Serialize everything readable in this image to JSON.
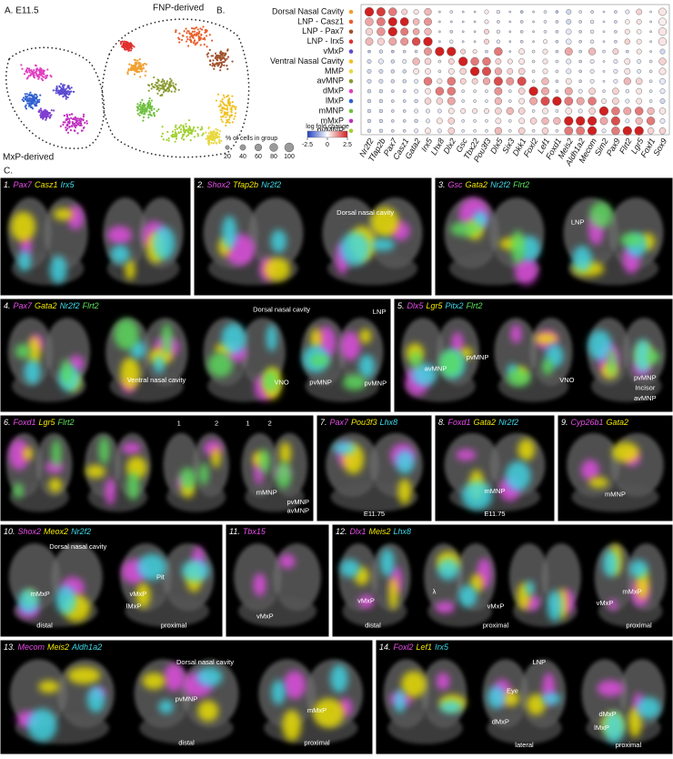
{
  "panel_a": {
    "label": "A. E11.5",
    "annotations": [
      "FNP-derived",
      "MxP-derived"
    ]
  },
  "chart_data": {
    "type": "dotplot",
    "label": "B.",
    "rows": [
      "Dorsal Nasal Cavity",
      "LNP - Casz1",
      "LNP - Pax7",
      "LNP - Irx5",
      "vMxP",
      "Ventral Nasal Cavity",
      "MMP",
      "avMNP",
      "dMxP",
      "lMxP",
      "mMNP",
      "mMxP",
      "pvMNP"
    ],
    "row_colors": [
      "#f0a030",
      "#e8602c",
      "#a0522d",
      "#e03030",
      "#5a4bd0",
      "#f0c020",
      "#e8d840",
      "#8a9a30",
      "#e040c0",
      "#3060d0",
      "#70c040",
      "#c030c0",
      "#a0d030"
    ],
    "columns": [
      "Nr2f2",
      "Tfap2b",
      "Pax7",
      "Casz1",
      "Gata2",
      "Irx5",
      "Lhx8",
      "Dlx2",
      "Gsc",
      "Tbx22",
      "Pou3f3",
      "Dlx5",
      "Six3",
      "Dkk1",
      "Foxl2",
      "Lef1",
      "Foxd1",
      "Meis2",
      "Aldh1a2",
      "Mecom",
      "Sim2",
      "Pax9",
      "Flrt2",
      "Lgr5",
      "Foxf1",
      "Sox9"
    ],
    "log_fold_change": [
      [
        2.5,
        2.2,
        1.5,
        0.5,
        0.3,
        0.8,
        -0.5,
        -0.3,
        -0.5,
        -0.5,
        0.2,
        -0.3,
        -0.5,
        -0.8,
        -0.5,
        -0.3,
        -0.8,
        -0.5,
        -0.3,
        -0.5,
        -0.3,
        -0.5,
        -0.3,
        0.5,
        -0.3,
        0.3
      ],
      [
        1.0,
        1.5,
        2.5,
        2.5,
        0.8,
        1.2,
        -0.5,
        -0.5,
        -0.5,
        -0.5,
        0.3,
        -0.5,
        -0.5,
        -0.5,
        -0.5,
        -0.3,
        -0.5,
        -0.5,
        -0.5,
        -0.3,
        -0.3,
        -0.5,
        0.2,
        0.3,
        -0.5,
        0.2
      ],
      [
        0.5,
        1.2,
        2.5,
        1.5,
        1.0,
        0.8,
        -0.5,
        -0.5,
        -0.5,
        -0.5,
        0.5,
        -0.3,
        -0.5,
        -0.5,
        -0.5,
        -0.3,
        -0.5,
        -0.3,
        -0.5,
        -0.3,
        -0.3,
        -0.5,
        0.3,
        0.2,
        -0.5,
        0.3
      ],
      [
        0.8,
        0.5,
        1.0,
        1.2,
        2.0,
        2.5,
        -0.5,
        -0.3,
        -0.5,
        -0.5,
        0.5,
        -0.3,
        -0.5,
        -0.5,
        -0.5,
        0.2,
        -0.5,
        -0.3,
        -0.5,
        -0.3,
        -0.3,
        -0.5,
        0.5,
        0.3,
        -0.5,
        0.3
      ],
      [
        -0.8,
        -0.5,
        -0.8,
        -0.5,
        -0.5,
        1.2,
        2.5,
        2.5,
        0.5,
        0.3,
        -0.5,
        1.5,
        -0.5,
        0.3,
        -0.3,
        0.3,
        -0.5,
        1.0,
        -0.5,
        0.8,
        -0.3,
        0.5,
        -0.5,
        0.3,
        -0.5,
        -0.5
      ],
      [
        -0.5,
        -0.3,
        -0.5,
        -0.3,
        0.8,
        0.5,
        -0.3,
        0.5,
        2.5,
        1.5,
        1.5,
        0.5,
        0.3,
        0.3,
        -0.3,
        0.3,
        -0.3,
        -0.3,
        -0.5,
        -0.3,
        -0.3,
        -0.3,
        0.3,
        -0.3,
        -0.3,
        0.5
      ],
      [
        -0.5,
        -0.5,
        -0.5,
        -0.5,
        0.3,
        0.3,
        -0.3,
        0.3,
        0.5,
        2.5,
        2.0,
        1.0,
        0.5,
        0.5,
        -0.3,
        0.3,
        -0.3,
        -0.3,
        -0.5,
        -0.3,
        -0.3,
        -0.3,
        0.3,
        -0.3,
        -0.3,
        0.3
      ],
      [
        -0.5,
        -0.5,
        -0.5,
        -0.5,
        -0.3,
        1.5,
        0.3,
        1.5,
        0.5,
        0.5,
        1.0,
        2.0,
        1.2,
        2.0,
        -0.3,
        0.8,
        -0.5,
        0.3,
        -0.5,
        -0.3,
        -0.3,
        -0.3,
        0.8,
        0.5,
        -0.3,
        -0.3
      ],
      [
        -0.5,
        -0.5,
        -0.5,
        -0.5,
        -0.3,
        0.3,
        1.5,
        1.5,
        -0.3,
        -0.3,
        -0.3,
        1.2,
        -0.3,
        0.5,
        2.5,
        1.0,
        -0.5,
        1.0,
        -0.3,
        0.5,
        -0.3,
        0.5,
        -0.3,
        0.3,
        -0.3,
        -0.3
      ],
      [
        -0.5,
        -0.5,
        -0.5,
        -0.5,
        -0.5,
        0.5,
        0.5,
        1.0,
        -0.3,
        -0.3,
        -0.3,
        0.8,
        -0.3,
        0.3,
        1.0,
        2.0,
        2.5,
        1.5,
        1.0,
        1.5,
        0.3,
        0.5,
        -0.3,
        0.3,
        -0.3,
        -0.5
      ],
      [
        -0.5,
        -0.5,
        -0.5,
        -0.5,
        -0.3,
        -0.3,
        -0.3,
        0.3,
        0.3,
        0.3,
        0.3,
        0.5,
        0.8,
        0.5,
        -0.3,
        0.3,
        -0.3,
        0.3,
        -0.3,
        0.5,
        2.5,
        1.5,
        1.0,
        1.5,
        0.8,
        0.3
      ],
      [
        -0.5,
        -0.5,
        -0.5,
        -0.5,
        -0.5,
        -0.3,
        0.3,
        0.5,
        -0.3,
        -0.3,
        -0.3,
        0.3,
        -0.3,
        0.3,
        0.5,
        0.8,
        0.8,
        2.5,
        2.5,
        2.5,
        1.0,
        2.0,
        -0.3,
        0.8,
        1.5,
        -0.3
      ],
      [
        -0.5,
        -0.5,
        -0.5,
        -0.5,
        -0.3,
        0.3,
        -0.3,
        0.5,
        -0.3,
        -0.3,
        -0.3,
        0.8,
        -0.3,
        0.5,
        -0.3,
        0.5,
        -0.3,
        1.5,
        1.5,
        2.5,
        -0.3,
        1.5,
        2.5,
        2.5,
        0.5,
        0.5
      ]
    ],
    "percent_cells": [
      [
        95,
        90,
        80,
        40,
        30,
        60,
        5,
        10,
        5,
        5,
        20,
        15,
        5,
        10,
        5,
        10,
        10,
        30,
        10,
        10,
        5,
        10,
        20,
        40,
        5,
        70
      ],
      [
        80,
        85,
        90,
        85,
        50,
        70,
        5,
        5,
        5,
        5,
        20,
        10,
        5,
        10,
        5,
        10,
        10,
        30,
        10,
        15,
        5,
        10,
        25,
        30,
        5,
        70
      ],
      [
        60,
        80,
        95,
        70,
        50,
        60,
        5,
        10,
        5,
        5,
        30,
        15,
        5,
        10,
        5,
        10,
        10,
        35,
        10,
        15,
        5,
        10,
        30,
        25,
        5,
        75
      ],
      [
        70,
        60,
        70,
        70,
        80,
        95,
        5,
        15,
        5,
        5,
        30,
        15,
        5,
        10,
        5,
        20,
        10,
        35,
        10,
        15,
        5,
        10,
        35,
        30,
        5,
        75
      ],
      [
        10,
        15,
        10,
        10,
        10,
        70,
        95,
        95,
        30,
        20,
        10,
        80,
        5,
        40,
        10,
        30,
        10,
        70,
        10,
        60,
        10,
        40,
        10,
        30,
        5,
        30
      ],
      [
        20,
        30,
        15,
        20,
        60,
        50,
        10,
        40,
        95,
        80,
        80,
        40,
        30,
        40,
        10,
        30,
        10,
        30,
        10,
        20,
        5,
        20,
        40,
        20,
        10,
        60
      ],
      [
        20,
        20,
        15,
        15,
        40,
        40,
        10,
        40,
        50,
        95,
        90,
        60,
        40,
        50,
        10,
        30,
        10,
        30,
        10,
        20,
        5,
        20,
        40,
        20,
        10,
        55
      ],
      [
        20,
        20,
        15,
        15,
        20,
        80,
        30,
        80,
        40,
        40,
        60,
        90,
        70,
        90,
        10,
        60,
        10,
        40,
        10,
        20,
        5,
        20,
        60,
        50,
        10,
        40
      ],
      [
        15,
        15,
        10,
        10,
        20,
        40,
        80,
        80,
        10,
        10,
        10,
        70,
        10,
        50,
        95,
        70,
        10,
        70,
        20,
        50,
        10,
        50,
        15,
        40,
        10,
        30
      ],
      [
        15,
        15,
        10,
        10,
        15,
        50,
        50,
        70,
        10,
        10,
        10,
        60,
        10,
        40,
        70,
        90,
        95,
        85,
        70,
        80,
        30,
        50,
        20,
        40,
        10,
        30
      ],
      [
        15,
        15,
        10,
        10,
        20,
        20,
        20,
        40,
        30,
        30,
        30,
        50,
        60,
        50,
        10,
        40,
        10,
        50,
        20,
        50,
        95,
        80,
        70,
        80,
        60,
        50
      ],
      [
        15,
        15,
        10,
        10,
        15,
        20,
        40,
        50,
        10,
        10,
        10,
        40,
        10,
        40,
        50,
        60,
        60,
        95,
        95,
        95,
        70,
        90,
        20,
        60,
        80,
        30
      ],
      [
        15,
        15,
        10,
        10,
        20,
        40,
        20,
        50,
        10,
        10,
        10,
        60,
        10,
        50,
        10,
        50,
        10,
        85,
        85,
        95,
        20,
        80,
        95,
        95,
        50,
        50
      ]
    ],
    "percent_legend": {
      "title": "% of cells in group",
      "ticks": [
        20,
        40,
        60,
        80,
        100
      ]
    },
    "color_legend": {
      "title": "log fold change",
      "lim": [
        -2.5,
        2.5
      ],
      "ticks": [
        -2.5,
        0,
        2.5
      ],
      "colors": [
        "#2040c0",
        "#ffffff",
        "#d02020"
      ]
    }
  },
  "panel_c": {
    "label": "C.",
    "panels": [
      {
        "number": "1.",
        "genes": [
          {
            "name": "Pax7",
            "color": "#e84de8"
          },
          {
            "name": "Casz1",
            "color": "#f2e600"
          },
          {
            "name": "Irx5",
            "color": "#3fd9e8"
          }
        ],
        "annotations": []
      },
      {
        "number": "2.",
        "genes": [
          {
            "name": "Shox2",
            "color": "#e84de8"
          },
          {
            "name": "Tfap2b",
            "color": "#f2e600"
          },
          {
            "name": "Nr2f2",
            "color": "#3fd9e8"
          }
        ],
        "annotations": [
          "Dorsal nasal cavity"
        ]
      },
      {
        "number": "3.",
        "genes": [
          {
            "name": "Gsc",
            "color": "#e84de8"
          },
          {
            "name": "Gata2",
            "color": "#f2e600"
          },
          {
            "name": "Nr2f2",
            "color": "#3fd9e8"
          },
          {
            "name": "Flrt2",
            "color": "#5de05d"
          }
        ],
        "annotations": [
          "LNP"
        ]
      },
      {
        "number": "4.",
        "genes": [
          {
            "name": "Pax7",
            "color": "#e84de8"
          },
          {
            "name": "Gata2",
            "color": "#f2e600"
          },
          {
            "name": "Nr2f2",
            "color": "#3fd9e8"
          },
          {
            "name": "Flrt2",
            "color": "#5de05d"
          }
        ],
        "annotations": [
          "Dorsal nasal cavity",
          "Ventral nasal cavity",
          "VNO",
          "pvMNP",
          "LNP",
          "pvMNP"
        ]
      },
      {
        "number": "5.",
        "genes": [
          {
            "name": "Dlx5",
            "color": "#e84de8"
          },
          {
            "name": "Lgr5",
            "color": "#f2e600"
          },
          {
            "name": "Pitx2",
            "color": "#3fd9e8"
          },
          {
            "name": "Flrt2",
            "color": "#5de05d"
          }
        ],
        "annotations": [
          "pvMNP",
          "avMNP",
          "VNO",
          "pvMNP",
          "Incisor",
          "avMNP"
        ]
      },
      {
        "number": "6.",
        "genes": [
          {
            "name": "Foxd1",
            "color": "#e84de8"
          },
          {
            "name": "Lgr5",
            "color": "#f2e600"
          },
          {
            "name": "Flrt2",
            "color": "#5de05d"
          }
        ],
        "annotations": [
          "1",
          "2",
          "1",
          "2",
          "mMNP",
          "pvMNP",
          "avMNP"
        ]
      },
      {
        "number": "7.",
        "genes": [
          {
            "name": "Pax7",
            "color": "#e84de8"
          },
          {
            "name": "Pou3f3",
            "color": "#f2e600"
          },
          {
            "name": "Lhx8",
            "color": "#3fd9e8"
          }
        ],
        "annotations": [
          "E11.75"
        ]
      },
      {
        "number": "8.",
        "genes": [
          {
            "name": "Foxd1",
            "color": "#e84de8"
          },
          {
            "name": "Gata2",
            "color": "#f2e600"
          },
          {
            "name": "Nr2f2",
            "color": "#3fd9e8"
          }
        ],
        "annotations": [
          "mMNP",
          "E11.75"
        ]
      },
      {
        "number": "9.",
        "genes": [
          {
            "name": "Cyp26b1",
            "color": "#e84de8"
          },
          {
            "name": "Gata2",
            "color": "#f2e600"
          }
        ],
        "annotations": [
          "mMNP"
        ]
      },
      {
        "number": "10.",
        "genes": [
          {
            "name": "Shox2",
            "color": "#e84de8"
          },
          {
            "name": "Meox2",
            "color": "#f2e600"
          },
          {
            "name": "Nr2f2",
            "color": "#3fd9e8"
          }
        ],
        "annotations": [
          "Dorsal nasal cavity",
          "mMxP",
          "distal",
          "Pit",
          "vMxP",
          "lMxP",
          "proximal"
        ]
      },
      {
        "number": "11.",
        "genes": [
          {
            "name": "Tbx15",
            "color": "#e84de8"
          }
        ],
        "annotations": [
          "vMxP"
        ]
      },
      {
        "number": "12.",
        "genes": [
          {
            "name": "Dlx1",
            "color": "#e84de8"
          },
          {
            "name": "Meis2",
            "color": "#f2e600"
          },
          {
            "name": "Lhx8",
            "color": "#3fd9e8"
          }
        ],
        "annotations": [
          "vMxP",
          "λ",
          "distal",
          "vMxP",
          "proximal",
          "mMxP",
          "vMxP",
          "proximal"
        ]
      },
      {
        "number": "13.",
        "genes": [
          {
            "name": "Mecom",
            "color": "#e84de8"
          },
          {
            "name": "Meis2",
            "color": "#f2e600"
          },
          {
            "name": "Aldh1a2",
            "color": "#3fd9e8"
          }
        ],
        "annotations": [
          "Dorsal nasal cavity",
          "pvMNP",
          "distal",
          "mMxP",
          "proximal"
        ]
      },
      {
        "number": "14.",
        "genes": [
          {
            "name": "Foxl2",
            "color": "#e84de8"
          },
          {
            "name": "Lef1",
            "color": "#f2e600"
          },
          {
            "name": "Irx5",
            "color": "#3fd9e8"
          }
        ],
        "annotations": [
          "LNP",
          "Eye",
          "dMxP",
          "lateral",
          "dMxP",
          "lMxP",
          "proximal"
        ]
      }
    ]
  }
}
